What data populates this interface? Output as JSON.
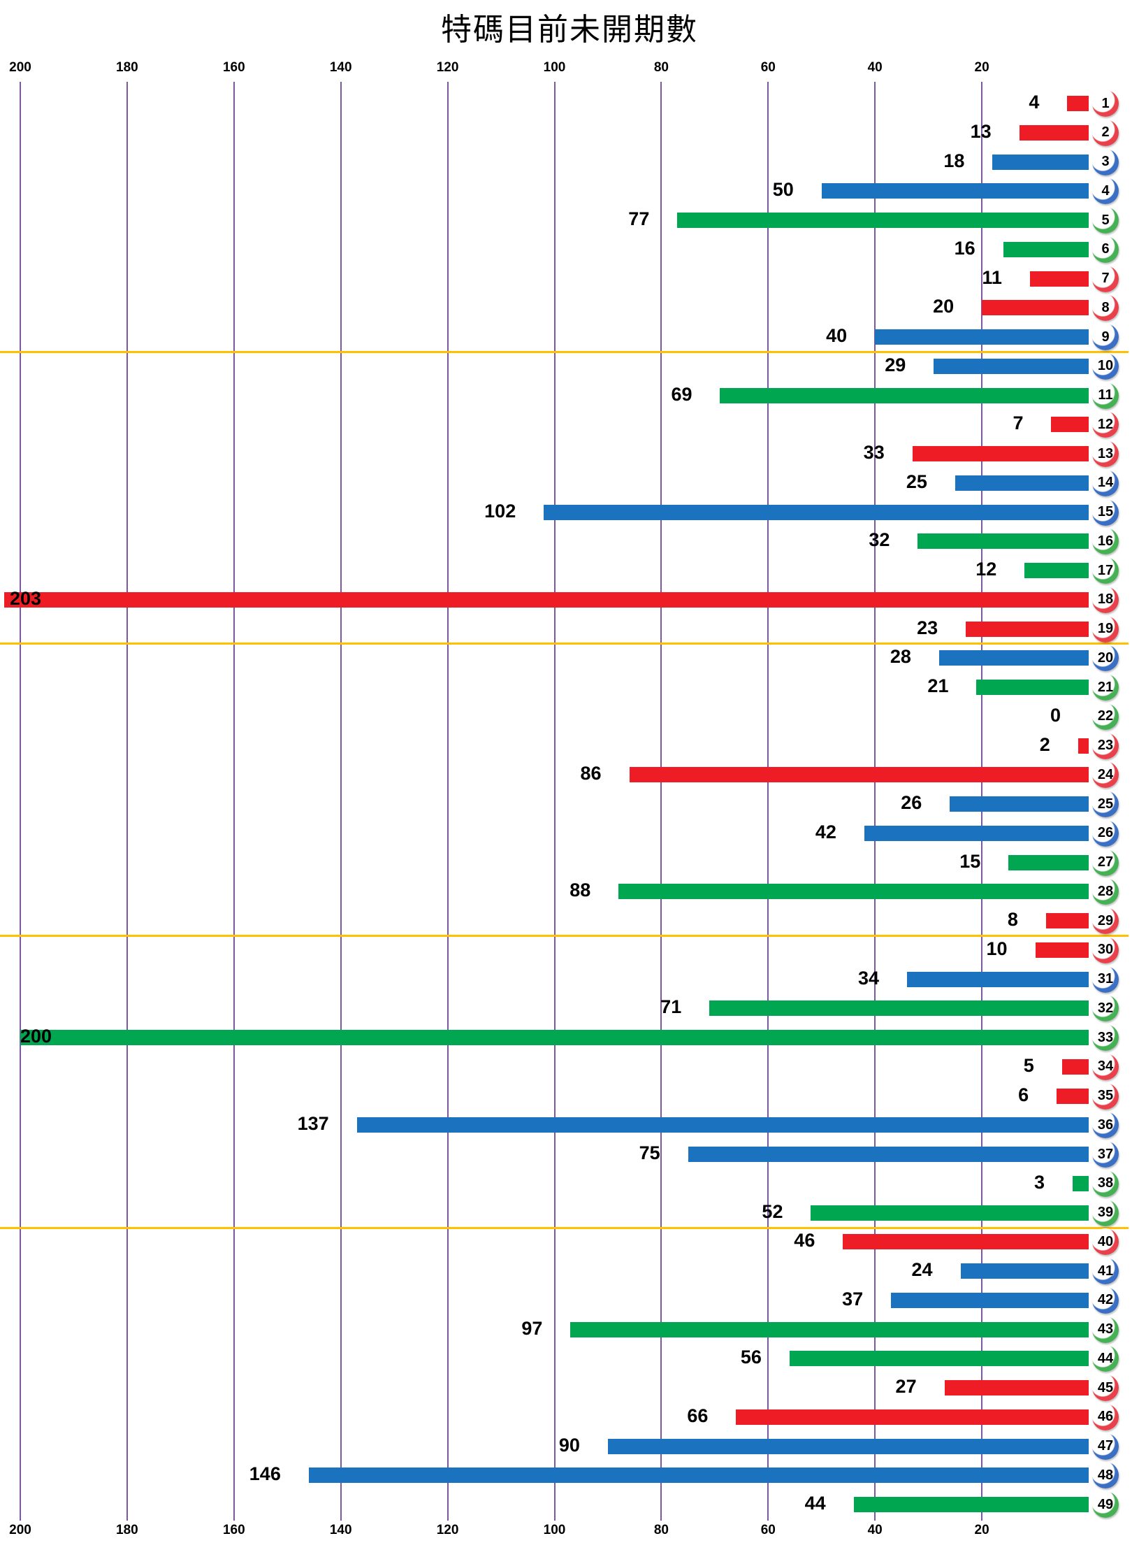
{
  "title": "特碼目前未開期數",
  "colors": {
    "red": "#EE1C25",
    "blue": "#1B72BE",
    "green": "#00A650",
    "gridline": "#7E57A1",
    "separator": "#FFC000",
    "text": "#000000"
  },
  "axis": {
    "top_tick_labels": [
      "200",
      "180",
      "160",
      "140",
      "120",
      "100",
      "80",
      "60",
      "40",
      "20"
    ],
    "bottom_tick_labels": [
      "200",
      "180",
      "160",
      "140",
      "120",
      "100",
      "80",
      "60",
      "40",
      "20"
    ]
  },
  "chart_data": {
    "type": "bar",
    "orientation": "horizontal",
    "title": "特碼目前未開期數",
    "value_axis": {
      "ticks": [
        200,
        180,
        160,
        140,
        120,
        100,
        80,
        60,
        40,
        20
      ],
      "range": [
        0,
        200
      ],
      "direction": "values-increase-leftward",
      "tick_labels_shown": "top and bottom",
      "grid": "vertical purple lines"
    },
    "group_separators_after_category": [
      9,
      19,
      29,
      39
    ],
    "categories": [
      1,
      2,
      3,
      4,
      5,
      6,
      7,
      8,
      9,
      10,
      11,
      12,
      13,
      14,
      15,
      16,
      17,
      18,
      19,
      20,
      21,
      22,
      23,
      24,
      25,
      26,
      27,
      28,
      29,
      30,
      31,
      32,
      33,
      34,
      35,
      36,
      37,
      38,
      39,
      40,
      41,
      42,
      43,
      44,
      45,
      46,
      47,
      48,
      49
    ],
    "values": [
      4,
      13,
      18,
      50,
      77,
      16,
      11,
      20,
      40,
      29,
      69,
      7,
      33,
      25,
      102,
      32,
      12,
      203,
      23,
      28,
      21,
      0,
      2,
      86,
      26,
      42,
      15,
      88,
      8,
      10,
      34,
      71,
      200,
      5,
      6,
      137,
      75,
      3,
      52,
      46,
      24,
      37,
      97,
      56,
      27,
      66,
      90,
      146,
      44
    ],
    "bar_colors": [
      "red",
      "red",
      "blue",
      "blue",
      "green",
      "green",
      "red",
      "red",
      "blue",
      "blue",
      "green",
      "red",
      "red",
      "blue",
      "blue",
      "green",
      "green",
      "red",
      "red",
      "blue",
      "green",
      "green",
      "red",
      "red",
      "blue",
      "blue",
      "green",
      "green",
      "red",
      "red",
      "blue",
      "green",
      "green",
      "red",
      "red",
      "blue",
      "blue",
      "green",
      "green",
      "red",
      "blue",
      "blue",
      "green",
      "green",
      "red",
      "red",
      "blue",
      "blue",
      "green"
    ],
    "legend": "none",
    "data_labels": "value shown at outside end of each bar; labels for 203 and 200 drawn over bar start; value 0 shown with no bar"
  }
}
